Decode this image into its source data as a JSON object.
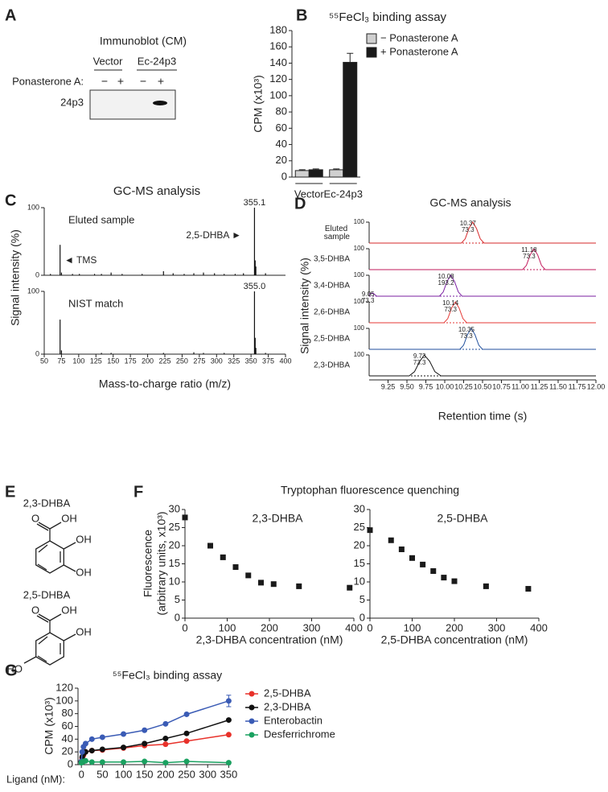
{
  "panel_labels": [
    "A",
    "B",
    "C",
    "D",
    "E",
    "F",
    "G"
  ],
  "immunoblot": {
    "title": "Immunoblot (CM)",
    "groups": [
      "Vector",
      "Ec-24p3"
    ],
    "row_label": "Ponasterone A:",
    "treatments": [
      "−",
      "+",
      "−",
      "+"
    ],
    "band_label": "24p3"
  },
  "structures": [
    {
      "name": "2,3-DHBA",
      "atoms": [
        "O",
        "OH",
        "OH",
        "OH"
      ]
    },
    {
      "name": "2,5-DHBA",
      "atoms": [
        "O",
        "OH",
        "OH",
        "HO"
      ]
    }
  ],
  "chart_data": [
    {
      "type": "grouped_bar",
      "title": "⁵⁵FeCl₃ binding assay",
      "ylabel": "CPM (x10³)",
      "categories": [
        "Vector",
        "Ec-24p3"
      ],
      "series": [
        {
          "name": "− Ponasterone A",
          "color": "#d0d0d0",
          "values": [
            8,
            9
          ],
          "errors": [
            1,
            1
          ]
        },
        {
          "name": "+ Ponasterone A",
          "color": "#1a1a1a",
          "values": [
            9,
            141
          ],
          "errors": [
            1,
            11
          ]
        }
      ],
      "ylim": [
        0,
        180
      ],
      "yticks": [
        0,
        20,
        40,
        60,
        80,
        100,
        120,
        140,
        160,
        180
      ],
      "legend": "top-right"
    },
    {
      "type": "spectrum",
      "title": "GC-MS analysis",
      "xlabel": "Mass-to-charge ratio (m/z)",
      "ylabel": "Signal intensity (%)",
      "xlim": [
        50,
        400
      ],
      "xticks": [
        50,
        75,
        100,
        125,
        150,
        175,
        200,
        225,
        250,
        275,
        300,
        325,
        350,
        375,
        400
      ],
      "ylim": [
        0,
        100
      ],
      "yticks": [
        0,
        100
      ],
      "series": [
        {
          "name": "Eluted sample",
          "color": "#111111",
          "peak_label": "355.1",
          "x": [
            59,
            73,
            75,
            91,
            101,
            123,
            133,
            147,
            163,
            192,
            223,
            237,
            253,
            267,
            281,
            297,
            311,
            327,
            339,
            355,
            356,
            357,
            371
          ],
          "values": [
            2,
            45,
            4,
            2,
            2,
            2,
            2,
            4,
            2,
            2,
            6,
            3,
            2,
            3,
            4,
            3,
            2,
            2,
            3,
            100,
            22,
            13,
            3
          ]
        },
        {
          "name": "NIST match",
          "color": "#111111",
          "peak_label": "355.0",
          "x": [
            73,
            75,
            133,
            147,
            223,
            267,
            281,
            311,
            355,
            356,
            357,
            371
          ],
          "values": [
            55,
            6,
            2,
            2,
            2,
            3,
            2,
            2,
            100,
            26,
            10,
            2
          ]
        }
      ],
      "annotations": [
        "2,5-DHBA ►",
        "◄ TMS"
      ]
    },
    {
      "type": "chromatogram",
      "title": "GC-MS analysis",
      "xlabel": "Retention time (s)",
      "ylabel": "Signal intensity (%)",
      "xlim": [
        9.0,
        12.0
      ],
      "xticks": [
        9.25,
        {
          "value": 9.5,
          "label": "9.50"
        },
        9.75,
        {
          "value": 10,
          "label": "10.00"
        },
        10.25,
        {
          "value": 10.5,
          "label": "10.50"
        },
        10.75,
        {
          "value": 11,
          "label": "11.00"
        },
        11.25,
        {
          "value": 11.5,
          "label": "11.50"
        },
        11.75,
        {
          "value": 12,
          "label": "12.00"
        }
      ],
      "ylim": [
        0,
        100
      ],
      "yticks": [
        100
      ],
      "series": [
        {
          "name": "Eluted sample",
          "color": "#d62728",
          "labels": [
            [
              "10.37",
              "73.3"
            ]
          ],
          "x": [
            9.0,
            10.22,
            10.27,
            10.32,
            10.37,
            10.42,
            10.47,
            10.52,
            12.0
          ],
          "values": [
            0,
            0,
            20,
            70,
            100,
            70,
            20,
            0,
            0
          ]
        },
        {
          "name": "3,5-DHBA",
          "color": "#c2185b",
          "labels": [
            [
              "11.18",
              "73.3"
            ]
          ],
          "x": [
            9.0,
            11.03,
            11.08,
            11.13,
            11.18,
            11.23,
            11.28,
            11.33,
            12.0
          ],
          "values": [
            0,
            0,
            20,
            70,
            100,
            70,
            20,
            0,
            0
          ]
        },
        {
          "name": "3,4-DHBA",
          "color": "#7b1fa2",
          "labels": [
            [
              "10.08",
              "193.2"
            ],
            [
              "9.05",
              "73.3"
            ]
          ],
          "x": [
            9.0,
            9.05,
            9.1,
            9.93,
            9.98,
            10.03,
            10.08,
            10.13,
            10.18,
            10.23,
            12.0
          ],
          "values": [
            10,
            15,
            0,
            0,
            20,
            70,
            100,
            70,
            20,
            0,
            0
          ]
        },
        {
          "name": "2,6-DHBA",
          "color": "#e53935",
          "labels": [
            [
              "10.14",
              "73.3"
            ]
          ],
          "x": [
            9.0,
            9.99,
            10.04,
            10.09,
            10.14,
            10.19,
            10.24,
            10.29,
            12.0
          ],
          "values": [
            0,
            0,
            20,
            70,
            100,
            70,
            20,
            0,
            0
          ]
        },
        {
          "name": "2,5-DHBA",
          "color": "#1f4e9c",
          "labels": [
            [
              "10.35",
              "73.3"
            ]
          ],
          "x": [
            9.0,
            10.2,
            10.25,
            10.3,
            10.35,
            10.4,
            10.45,
            10.5,
            12.0
          ],
          "values": [
            0,
            0,
            20,
            70,
            100,
            70,
            20,
            0,
            0
          ]
        },
        {
          "name": "2,3-DHBA",
          "color": "#111111",
          "labels": [
            [
              "9.73",
              "73.3"
            ]
          ],
          "x": [
            9.0,
            9.53,
            9.6,
            9.67,
            9.73,
            9.8,
            9.87,
            9.95,
            12.0
          ],
          "values": [
            0,
            0,
            20,
            70,
            100,
            70,
            20,
            0,
            0
          ]
        }
      ]
    },
    {
      "type": "scatter",
      "title": "Tryptophan fluorescence quenching",
      "subtitle": "2,3-DHBA",
      "ylabel": [
        "Fluorescence",
        "(arbitrary units, x10³)"
      ],
      "xlabel": "2,3-DHBA concentration (nM)",
      "x": [
        0,
        60,
        90,
        120,
        150,
        180,
        210,
        270,
        390
      ],
      "values": [
        27.8,
        20,
        16.8,
        14.1,
        11.8,
        9.8,
        9.4,
        8.8,
        8.4
      ],
      "color": "#1a1a1a",
      "xlim": [
        0,
        400
      ],
      "xticks": [
        0,
        100,
        200,
        300,
        400
      ],
      "ylim": [
        0,
        30
      ],
      "yticks": [
        0,
        5,
        10,
        15,
        20,
        25,
        30
      ]
    },
    {
      "type": "scatter",
      "subtitle": "2,5-DHBA",
      "xlabel": "2,5-DHBA concentration (nM)",
      "x": [
        0,
        50,
        75,
        100,
        125,
        150,
        175,
        200,
        275,
        375
      ],
      "values": [
        24.3,
        21.5,
        19,
        16.6,
        14.8,
        13,
        11.2,
        10.2,
        8.8,
        8.1
      ],
      "color": "#1a1a1a",
      "xlim": [
        0,
        400
      ],
      "xticks": [
        0,
        100,
        200,
        300,
        400
      ],
      "ylim": [
        0,
        30
      ],
      "yticks": [
        0,
        5,
        10,
        15,
        20,
        25,
        30
      ]
    },
    {
      "type": "line",
      "title": "⁵⁵FeCl₃ binding assay",
      "ylabel": "CPM (x10³)",
      "xlabel": "Ligand (nM):",
      "x": [
        0,
        2,
        5,
        10,
        25,
        50,
        100,
        150,
        200,
        250,
        350
      ],
      "series": [
        {
          "name": "2,5-DHBA",
          "color": "#e8312a",
          "values": [
            5,
            10,
            15,
            20,
            22,
            23,
            26,
            30,
            32,
            37,
            47
          ]
        },
        {
          "name": "2,3-DHBA",
          "color": "#111111",
          "values": [
            5,
            12,
            17,
            20,
            22,
            24,
            27,
            33,
            41,
            49,
            70
          ]
        },
        {
          "name": "Enterobactin",
          "color": "#3a5bb5",
          "values": [
            5,
            20,
            28,
            33,
            40,
            43,
            48,
            54,
            64,
            79,
            100
          ],
          "errors": [
            null,
            null,
            null,
            null,
            null,
            null,
            null,
            null,
            null,
            null,
            9
          ]
        },
        {
          "name": "Desferrichrome",
          "color": "#1aa160",
          "values": [
            3,
            4,
            5,
            6,
            4,
            4,
            4,
            5,
            3,
            5,
            3
          ]
        }
      ],
      "xlim": [
        -8,
        355
      ],
      "xticks": [
        0,
        50,
        100,
        150,
        200,
        250,
        300,
        350
      ],
      "ylim": [
        0,
        120
      ],
      "yticks": [
        0,
        20,
        40,
        60,
        80,
        100,
        120
      ],
      "legend": "right"
    }
  ]
}
